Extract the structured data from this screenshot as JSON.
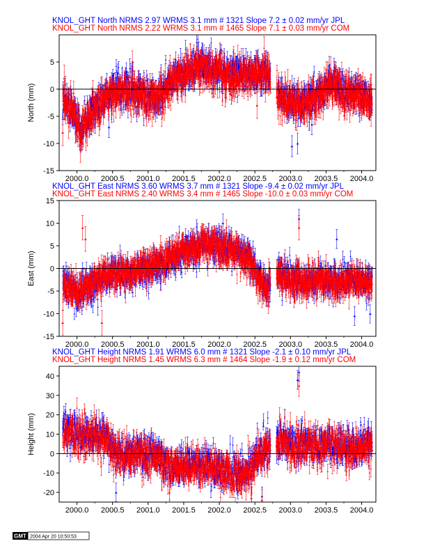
{
  "chart_data": [
    {
      "type": "scatter",
      "ylabel": "North (mm)",
      "ylim": [
        -15,
        10
      ],
      "xlim": [
        1999.75,
        2004.2
      ],
      "yticks": [
        -15,
        -10,
        -5,
        0,
        5
      ],
      "xticks": [
        "2000.0",
        "2000.5",
        "2001.0",
        "2001.5",
        "2002.0",
        "2002.5",
        "2003.0",
        "2003.5",
        "2004.0"
      ],
      "header": [
        {
          "text": "KNOL_GHT North NRMS 2.97 WRMS  3.1 mm # 1321 Slope    7.2 ±  0.02 mm/yr JPL",
          "color": "#0000ff"
        },
        {
          "text": "KNOL_GHT North NRMS 2.22 WRMS  3.1 mm # 1465 Slope    7.1 ±  0.03 mm/yr COM",
          "color": "#ff0000"
        }
      ],
      "series": [
        {
          "name": "JPL",
          "color": "#0000ff",
          "n": 1321,
          "scatter": 1.5,
          "err": 1.2,
          "trend": [
            [
              1999.8,
              -1
            ],
            [
              1999.95,
              -4
            ],
            [
              2000.05,
              -7
            ],
            [
              2000.15,
              -6
            ],
            [
              2000.3,
              -2.5
            ],
            [
              2000.6,
              0.5
            ],
            [
              2000.9,
              -0.5
            ],
            [
              2001.15,
              -1.5
            ],
            [
              2001.35,
              2
            ],
            [
              2001.7,
              4.5
            ],
            [
              2001.9,
              4
            ],
            [
              2002.1,
              3
            ],
            [
              2002.4,
              3
            ],
            [
              2002.7,
              3.2
            ],
            [
              2002.75,
              0
            ],
            [
              2002.85,
              -1
            ],
            [
              2003.0,
              -2.5
            ],
            [
              2003.15,
              -2.5
            ],
            [
              2003.4,
              -1
            ],
            [
              2003.55,
              1.5
            ],
            [
              2003.8,
              -0.5
            ],
            [
              2004.0,
              -1
            ],
            [
              2004.15,
              -2
            ]
          ],
          "gaps": [
            [
              2002.72,
              2002.82
            ]
          ],
          "outliers": [
            [
              2003.02,
              -10.5
            ],
            [
              2003.1,
              -10
            ],
            [
              2003.3,
              -6.5
            ],
            [
              2000.45,
              -7
            ]
          ]
        },
        {
          "name": "COM",
          "color": "#ff0000",
          "n": 1465,
          "scatter": 1.5,
          "err": 1.5,
          "trend": [
            [
              1999.8,
              -1.5
            ],
            [
              1999.95,
              -4.5
            ],
            [
              2000.05,
              -7.5
            ],
            [
              2000.15,
              -6
            ],
            [
              2000.3,
              -3
            ],
            [
              2000.6,
              0
            ],
            [
              2000.9,
              -1
            ],
            [
              2001.15,
              -2
            ],
            [
              2001.35,
              1.5
            ],
            [
              2001.7,
              4
            ],
            [
              2001.9,
              3.5
            ],
            [
              2002.1,
              2.5
            ],
            [
              2002.4,
              2.5
            ],
            [
              2002.7,
              2.8
            ],
            [
              2002.75,
              0
            ],
            [
              2002.85,
              -1.5
            ],
            [
              2003.0,
              -3
            ],
            [
              2003.15,
              -3
            ],
            [
              2003.4,
              -1.5
            ],
            [
              2003.55,
              1
            ],
            [
              2003.8,
              -1
            ],
            [
              2004.0,
              -1.5
            ],
            [
              2004.15,
              -2.5
            ]
          ],
          "gaps": [
            [
              2002.72,
              2002.8
            ]
          ],
          "outliers": [
            [
              1999.8,
              -8
            ],
            [
              1999.82,
              2
            ],
            [
              2002.53,
              -3
            ]
          ]
        }
      ]
    },
    {
      "type": "scatter",
      "ylabel": "East (mm)",
      "ylim": [
        -15,
        15
      ],
      "xlim": [
        1999.75,
        2004.2
      ],
      "yticks": [
        -15,
        -10,
        -5,
        0,
        5,
        10,
        15
      ],
      "xticks": [
        "2000.0",
        "2000.5",
        "2001.0",
        "2001.5",
        "2002.0",
        "2002.5",
        "2003.0",
        "2003.5",
        "2004.0"
      ],
      "header": [
        {
          "text": "KNOL_GHT East NRMS 3.60 WRMS  3.7 mm # 1321 Slope   -9.4 ±  0.02 mm/yr JPL",
          "color": "#0000ff"
        },
        {
          "text": "KNOL_GHT East NRMS 2.40 WRMS  3.4 mm # 1465 Slope  -10.0 ±  0.03 mm/yr COM",
          "color": "#ff0000"
        }
      ],
      "series": [
        {
          "name": "JPL",
          "color": "#0000ff",
          "n": 1321,
          "scatter": 1.6,
          "err": 1.3,
          "trend": [
            [
              1999.8,
              -3
            ],
            [
              2000.0,
              -5.5
            ],
            [
              2000.2,
              -4
            ],
            [
              2000.4,
              -2
            ],
            [
              2000.6,
              -1.5
            ],
            [
              2000.8,
              -1
            ],
            [
              2001.0,
              0
            ],
            [
              2001.3,
              1.5
            ],
            [
              2001.5,
              4
            ],
            [
              2001.8,
              5.5
            ],
            [
              2002.0,
              5.5
            ],
            [
              2002.2,
              4.5
            ],
            [
              2002.45,
              2
            ],
            [
              2002.55,
              -2
            ],
            [
              2002.65,
              -4
            ],
            [
              2002.75,
              -2
            ],
            [
              2002.85,
              -1
            ],
            [
              2003.0,
              -2
            ],
            [
              2003.2,
              -3
            ],
            [
              2003.4,
              -2
            ],
            [
              2003.6,
              -3
            ],
            [
              2003.8,
              -2.5
            ],
            [
              2004.0,
              -2.5
            ],
            [
              2004.15,
              -3
            ]
          ],
          "gaps": [
            [
              2002.72,
              2002.82
            ]
          ],
          "outliers": [
            [
              2002.05,
              10
            ],
            [
              2003.12,
              11
            ],
            [
              2003.65,
              6.5
            ],
            [
              2003.9,
              -10.5
            ],
            [
              2004.12,
              -10
            ]
          ]
        },
        {
          "name": "COM",
          "color": "#ff0000",
          "n": 1465,
          "scatter": 1.5,
          "err": 1.7,
          "trend": [
            [
              1999.8,
              -3.5
            ],
            [
              2000.0,
              -5
            ],
            [
              2000.2,
              -3.5
            ],
            [
              2000.4,
              -1.5
            ],
            [
              2000.6,
              -1
            ],
            [
              2000.8,
              -0.5
            ],
            [
              2001.0,
              0.5
            ],
            [
              2001.3,
              2
            ],
            [
              2001.5,
              4
            ],
            [
              2001.8,
              5
            ],
            [
              2002.0,
              5
            ],
            [
              2002.2,
              4
            ],
            [
              2002.45,
              1.5
            ],
            [
              2002.55,
              -2.5
            ],
            [
              2002.65,
              -4.5
            ],
            [
              2002.75,
              -2.5
            ],
            [
              2002.85,
              -1.5
            ],
            [
              2003.0,
              -2.5
            ],
            [
              2003.2,
              -3.5
            ],
            [
              2003.4,
              -2.5
            ],
            [
              2003.6,
              -3.5
            ],
            [
              2003.8,
              -3
            ],
            [
              2004.0,
              -3
            ],
            [
              2004.15,
              -3.5
            ]
          ],
          "gaps": [
            [
              2002.72,
              2002.8
            ]
          ],
          "outliers": [
            [
              2000.08,
              9
            ],
            [
              2000.12,
              6.5
            ],
            [
              2003.12,
              9
            ],
            [
              1999.8,
              -12
            ],
            [
              2002.1,
              8
            ],
            [
              2000.35,
              -12
            ]
          ]
        }
      ]
    },
    {
      "type": "scatter",
      "ylabel": "Height (mm)",
      "ylim": [
        -25,
        45
      ],
      "xlim": [
        1999.75,
        2004.2
      ],
      "yticks": [
        -20,
        -10,
        0,
        10,
        20,
        30,
        40
      ],
      "xticks": [
        "2000.0",
        "2000.5",
        "2001.0",
        "2001.5",
        "2002.0",
        "2002.5",
        "2003.0",
        "2003.5",
        "2004.0"
      ],
      "header": [
        {
          "text": "KNOL_GHT Height NRMS 1.91 WRMS  6.0 mm # 1321 Slope   -2.1 ±  0.10 mm/yr JPL",
          "color": "#0000ff"
        },
        {
          "text": "KNOL_GHT Height NRMS 1.45 WRMS  6.3 mm # 1464 Slope   -1.9 ±  0.12 mm/yr COM",
          "color": "#ff0000"
        }
      ],
      "series": [
        {
          "name": "JPL",
          "color": "#0000ff",
          "n": 1321,
          "scatter": 4.5,
          "err": 3,
          "trend": [
            [
              1999.8,
              14
            ],
            [
              2000.0,
              10
            ],
            [
              2000.2,
              10
            ],
            [
              2000.45,
              8
            ],
            [
              2000.55,
              0
            ],
            [
              2000.9,
              0
            ],
            [
              2001.1,
              0
            ],
            [
              2001.3,
              -6
            ],
            [
              2001.6,
              -5
            ],
            [
              2001.9,
              -6
            ],
            [
              2002.2,
              -10
            ],
            [
              2002.45,
              -8
            ],
            [
              2002.55,
              0
            ],
            [
              2002.7,
              5
            ],
            [
              2002.75,
              0
            ],
            [
              2002.85,
              8
            ],
            [
              2003.0,
              5
            ],
            [
              2003.3,
              5
            ],
            [
              2003.6,
              5
            ],
            [
              2003.9,
              3
            ],
            [
              2004.15,
              5
            ]
          ],
          "gaps": [
            [
              2002.72,
              2002.8
            ]
          ],
          "outliers": [
            [
              2003.12,
              42
            ],
            [
              2003.1,
              38
            ],
            [
              2000.55,
              -20
            ],
            [
              2002.6,
              -22
            ]
          ]
        },
        {
          "name": "COM",
          "color": "#ff0000",
          "n": 1464,
          "scatter": 4.5,
          "err": 3.5,
          "trend": [
            [
              1999.8,
              13
            ],
            [
              2000.0,
              9
            ],
            [
              2000.2,
              9
            ],
            [
              2000.45,
              7
            ],
            [
              2000.55,
              -1
            ],
            [
              2000.9,
              -1
            ],
            [
              2001.1,
              -1
            ],
            [
              2001.3,
              -7
            ],
            [
              2001.6,
              -6
            ],
            [
              2001.9,
              -7
            ],
            [
              2002.2,
              -11
            ],
            [
              2002.45,
              -9
            ],
            [
              2002.55,
              -1
            ],
            [
              2002.7,
              4
            ],
            [
              2002.75,
              -1
            ],
            [
              2002.85,
              7
            ],
            [
              2003.0,
              4
            ],
            [
              2003.3,
              4
            ],
            [
              2003.6,
              4
            ],
            [
              2003.9,
              2
            ],
            [
              2004.15,
              4
            ]
          ],
          "gaps": [
            [
              2002.72,
              2002.8
            ]
          ],
          "outliers": [
            [
              2003.12,
              35
            ],
            [
              2002.45,
              -23
            ],
            [
              2002.6,
              -24
            ],
            [
              2001.3,
              -20
            ]
          ]
        }
      ]
    }
  ],
  "stamp": {
    "logo": "GMT",
    "text": "2004 Apr 20 10:50:53"
  }
}
